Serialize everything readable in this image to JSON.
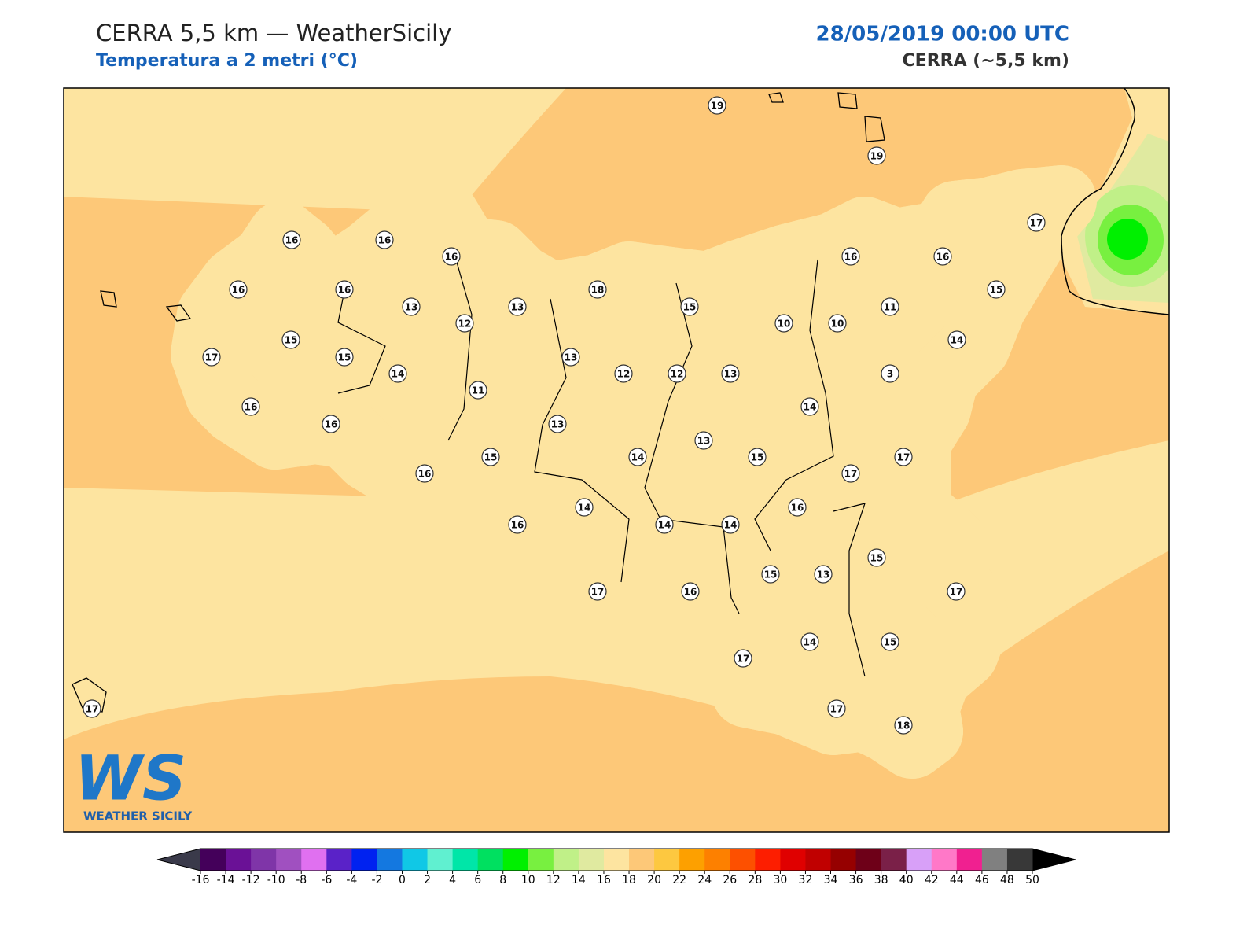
{
  "header": {
    "title": "CERRA 5,5 km — WeatherSicily",
    "subtitle": "Temperatura a 2 metri (°C)",
    "date": "28/05/2019 00:00 UTC",
    "model": "CERRA (~5,5 km)"
  },
  "stations": [
    19,
    19,
    16,
    16,
    16,
    17,
    16,
    16,
    13,
    13,
    18,
    15,
    16,
    16,
    15,
    11,
    10,
    10,
    12,
    15,
    17,
    15,
    14,
    13,
    12,
    12,
    13,
    14,
    3,
    11,
    16,
    16,
    13,
    14,
    13,
    15,
    14,
    15,
    17,
    16,
    17,
    14,
    16,
    16,
    14,
    14,
    15,
    13,
    15,
    17,
    16,
    17,
    14,
    15,
    17,
    17,
    18,
    17
  ],
  "colorbar": {
    "ticks": [
      -16,
      -14,
      -12,
      -10,
      -8,
      -6,
      -4,
      -2,
      0,
      2,
      4,
      6,
      8,
      10,
      12,
      14,
      16,
      18,
      20,
      22,
      24,
      26,
      28,
      30,
      32,
      34,
      36,
      38,
      40,
      42,
      44,
      46,
      48,
      50
    ],
    "colors": [
      "#44005a",
      "#6a1196",
      "#7f35a8",
      "#a050c0",
      "#e070f0",
      "#5a22c8",
      "#0022f0",
      "#1478e0",
      "#10c8e6",
      "#60f0d0",
      "#00e6a8",
      "#00e060",
      "#00f000",
      "#78f040",
      "#c0f088",
      "#e0eaa0",
      "#fde4a0",
      "#fdc878",
      "#fdc840",
      "#fda000",
      "#fd8000",
      "#fd5000",
      "#fd1e00",
      "#e00000",
      "#c00000",
      "#960000",
      "#6e0018",
      "#7a2048",
      "#d8a0f8",
      "#ff78c8",
      "#f02090",
      "#808080",
      "#383838"
    ],
    "under_color": "#3a3a4a",
    "over_color": "#000000"
  },
  "logo": {
    "mark": "WS",
    "text": "WEATHER SICILY"
  }
}
